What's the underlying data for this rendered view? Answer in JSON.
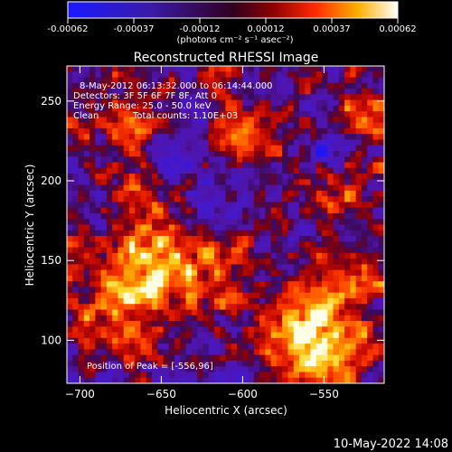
{
  "colorbar": {
    "ticks": [
      "-0.00062",
      "-0.00037",
      "-0.00012",
      "0.00012",
      "0.00037",
      "0.00062"
    ],
    "unit_label": "(photons cm⁻² s⁻¹ asec⁻²)"
  },
  "footer_timestamp": "10-May-2022 14:08",
  "chart_data": {
    "type": "heatmap",
    "title": "Reconstructed RHESSI Image",
    "xlabel": "Heliocentric X (arcsec)",
    "ylabel": "Heliocentric Y (arcsec)",
    "xlim": [
      -708,
      -513
    ],
    "ylim": [
      73,
      272
    ],
    "x_ticks": [
      -700,
      -650,
      -600,
      -550
    ],
    "y_ticks": [
      100,
      150,
      200,
      250
    ],
    "value_range": [
      -0.00062,
      0.00062
    ],
    "colormap": "blue-purple-red-yellow-white",
    "annotations": [
      "8-May-2012 06:13:32.000 to 06:14:44.000",
      "Detectors: 3F 5F 6F 7F 8F, Att 0",
      "Energy Range: 25.0 - 50.0 keV",
      "Clean",
      "Total counts: 1.10E+03",
      "Position of Peak = [-556,96]"
    ],
    "peak": {
      "x": -556,
      "y": 96
    },
    "bright_regions": [
      {
        "x": -557,
        "y": 100,
        "level": 1.0
      },
      {
        "x": -658,
        "y": 142,
        "level": 0.85
      },
      {
        "x": -545,
        "y": 200,
        "level": 0.55
      },
      {
        "x": -665,
        "y": 240,
        "level": 0.5
      },
      {
        "x": -600,
        "y": 230,
        "level": 0.45
      },
      {
        "x": -660,
        "y": 200,
        "level": 0.4
      },
      {
        "x": -610,
        "y": 150,
        "level": 0.45
      },
      {
        "x": -690,
        "y": 110,
        "level": 0.4
      },
      {
        "x": -530,
        "y": 140,
        "level": 0.5
      },
      {
        "x": -520,
        "y": 240,
        "level": 0.45
      }
    ],
    "dark_regions": [
      {
        "x": -646,
        "y": 213,
        "level": -0.6
      },
      {
        "x": -548,
        "y": 215,
        "level": -0.55
      },
      {
        "x": -620,
        "y": 185,
        "level": -0.4
      }
    ]
  }
}
